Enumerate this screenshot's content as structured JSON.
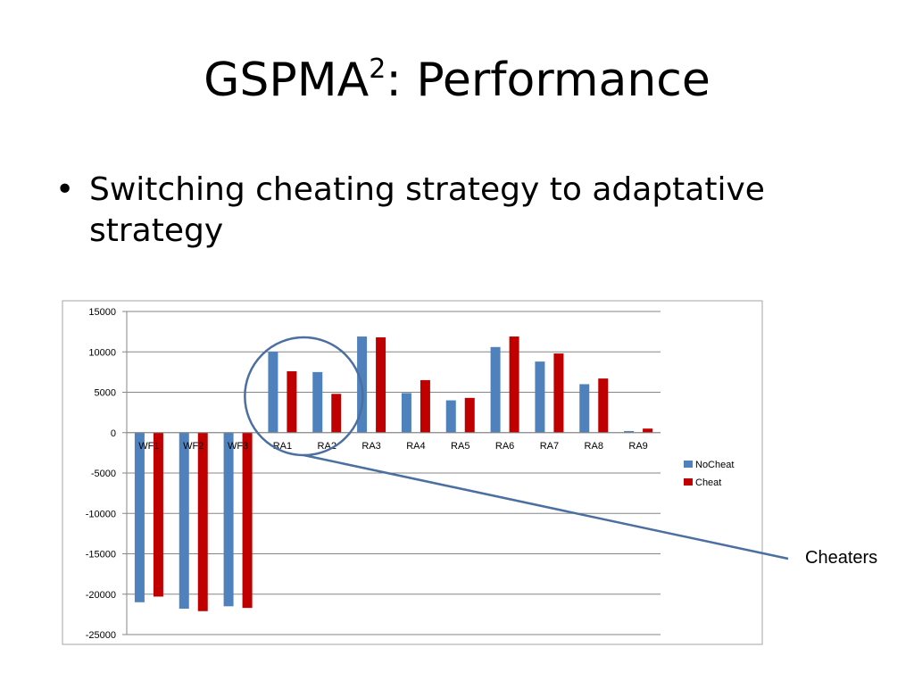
{
  "slide": {
    "title_main": "GSPMA",
    "title_sup": "2",
    "title_rest": ": Performance",
    "bullet_marker": "•",
    "bullet_text": "Switching cheating strategy to adaptative strategy"
  },
  "callout": {
    "label": "Cheaters"
  },
  "colors": {
    "nocheat": "#4F81BD",
    "cheat": "#C00000",
    "callout": "#4A6FA0"
  },
  "chart_data": {
    "type": "bar",
    "categories": [
      "WF1",
      "WF2",
      "WF3",
      "RA1",
      "RA2",
      "RA3",
      "RA4",
      "RA5",
      "RA6",
      "RA7",
      "RA8",
      "RA9"
    ],
    "series": [
      {
        "name": "NoCheat",
        "values": [
          -21000,
          -21800,
          -21500,
          10000,
          7500,
          11900,
          4900,
          4000,
          10600,
          8800,
          6000,
          200
        ]
      },
      {
        "name": "Cheat",
        "values": [
          -20300,
          -22100,
          -21700,
          7600,
          4800,
          11800,
          6500,
          4300,
          11900,
          9800,
          6700,
          500
        ]
      }
    ],
    "yticks": [
      "15000",
      "10000",
      "5000",
      "0",
      "-5000",
      "-10000",
      "-15000",
      "-20000",
      "-25000"
    ],
    "ylim": [
      -25000,
      15000
    ],
    "grid": true,
    "legend": "right"
  }
}
